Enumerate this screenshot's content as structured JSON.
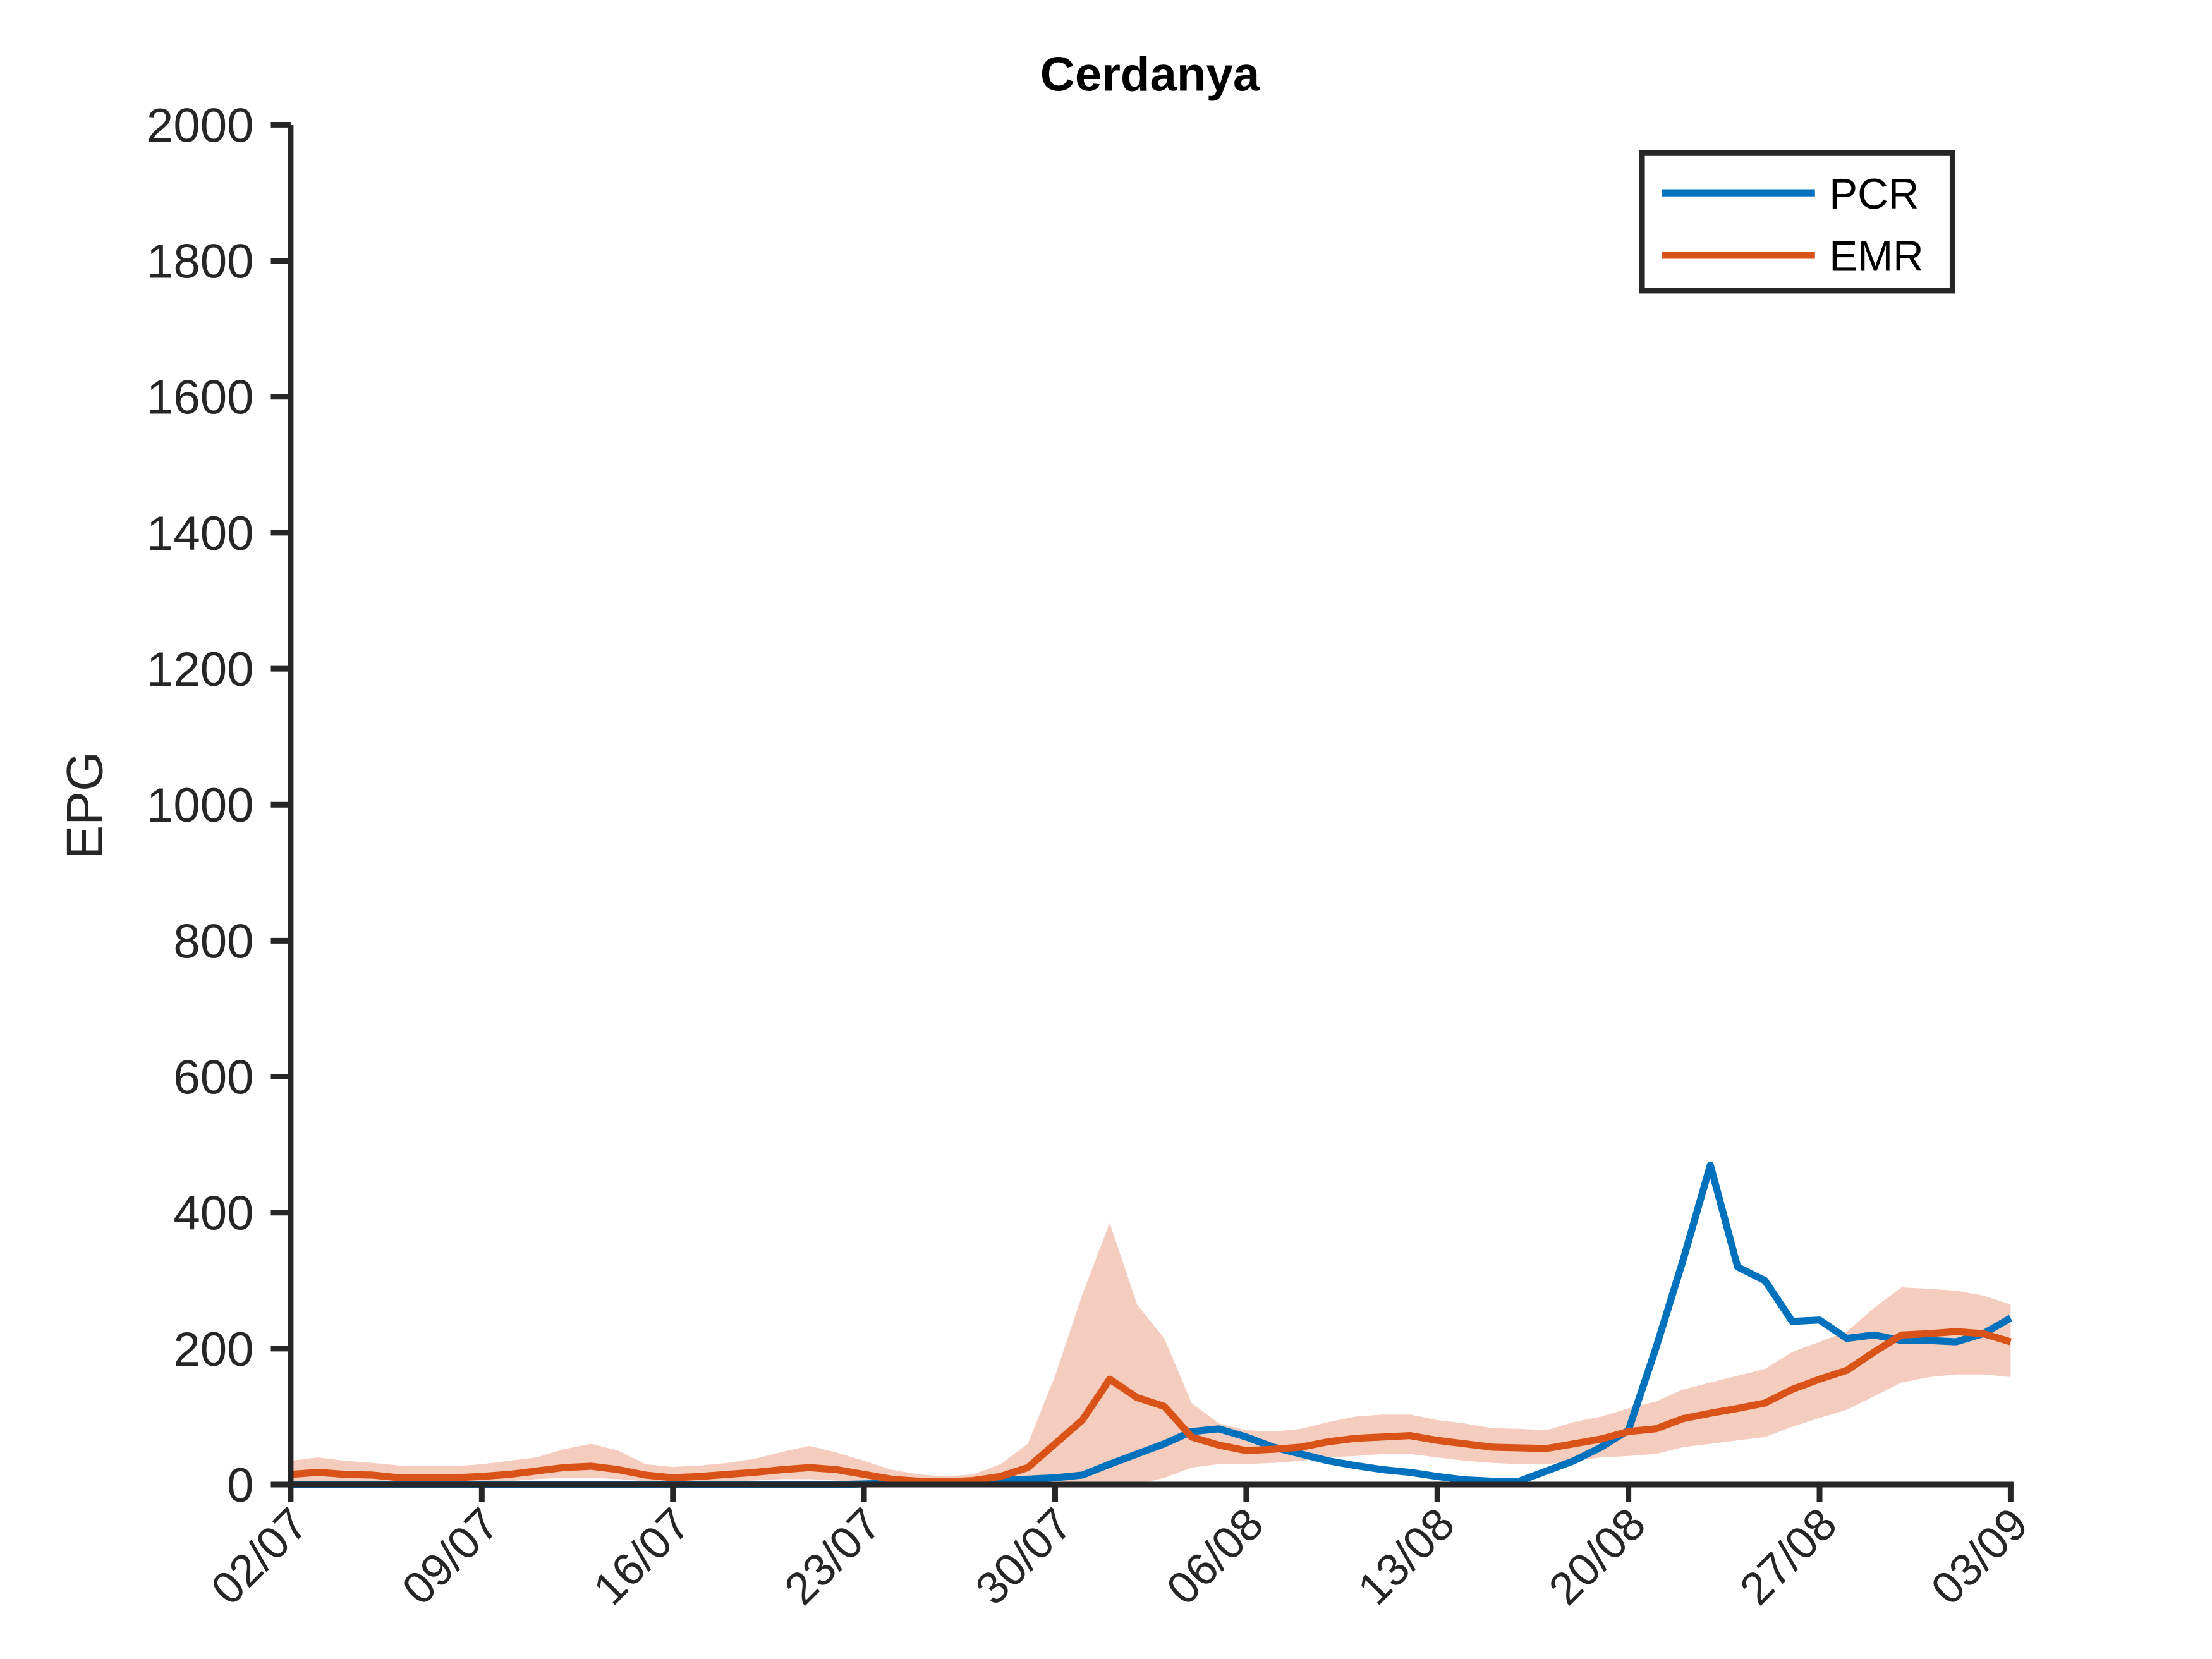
{
  "chart_data": {
    "type": "line",
    "title": "Cerdanya",
    "ylabel": "EPG",
    "x": [
      "02/07",
      "03/07",
      "04/07",
      "05/07",
      "06/07",
      "07/07",
      "08/07",
      "09/07",
      "10/07",
      "11/07",
      "12/07",
      "13/07",
      "14/07",
      "15/07",
      "16/07",
      "17/07",
      "18/07",
      "19/07",
      "20/07",
      "21/07",
      "22/07",
      "23/07",
      "24/07",
      "25/07",
      "26/07",
      "27/07",
      "28/07",
      "29/07",
      "30/07",
      "31/07",
      "01/08",
      "02/08",
      "03/08",
      "04/08",
      "05/08",
      "06/08",
      "07/08",
      "08/08",
      "09/08",
      "10/08",
      "11/08",
      "12/08",
      "13/08",
      "14/08",
      "15/08",
      "16/08",
      "17/08",
      "18/08",
      "19/08",
      "20/08",
      "21/08",
      "22/08",
      "23/08",
      "24/08",
      "25/08",
      "26/08",
      "27/08",
      "28/08",
      "29/08",
      "30/08",
      "31/08",
      "01/09",
      "02/09",
      "03/09"
    ],
    "series": [
      {
        "name": "PCR",
        "color": "#0072BD",
        "values": [
          0,
          0,
          0,
          0,
          0,
          0,
          0,
          0,
          0,
          0,
          0,
          0,
          0,
          0,
          0,
          0,
          0,
          0,
          0,
          0,
          0,
          1,
          2,
          3,
          4,
          5,
          6,
          8,
          10,
          14,
          30,
          45,
          60,
          78,
          82,
          70,
          55,
          45,
          35,
          28,
          22,
          18,
          12,
          7,
          5,
          5,
          20,
          35,
          55,
          80,
          200,
          330,
          470,
          320,
          300,
          240,
          242,
          215,
          220,
          212,
          212,
          210,
          222,
          245
        ]
      },
      {
        "name": "EMR",
        "color": "#D95319",
        "band_color": "#F5CDBE",
        "values": [
          15,
          18,
          15,
          14,
          10,
          10,
          10,
          12,
          15,
          20,
          25,
          27,
          22,
          14,
          10,
          12,
          15,
          18,
          22,
          25,
          22,
          15,
          8,
          5,
          4,
          6,
          12,
          25,
          60,
          95,
          155,
          128,
          115,
          70,
          58,
          50,
          52,
          55,
          63,
          68,
          70,
          72,
          65,
          60,
          55,
          54,
          53,
          60,
          67,
          78,
          82,
          97,
          105,
          112,
          120,
          140,
          155,
          168,
          195,
          220,
          222,
          225,
          222,
          210
        ],
        "upper": [
          35,
          40,
          35,
          32,
          28,
          27,
          27,
          30,
          35,
          40,
          52,
          60,
          50,
          30,
          26,
          28,
          32,
          38,
          48,
          57,
          47,
          35,
          22,
          15,
          12,
          15,
          30,
          60,
          160,
          280,
          385,
          265,
          215,
          120,
          90,
          80,
          78,
          82,
          92,
          100,
          103,
          103,
          95,
          90,
          83,
          82,
          80,
          92,
          100,
          112,
          122,
          140,
          150,
          160,
          170,
          195,
          210,
          225,
          260,
          290,
          288,
          285,
          278,
          265
        ],
        "lower": [
          3,
          5,
          5,
          4,
          2,
          2,
          2,
          3,
          5,
          8,
          10,
          10,
          8,
          5,
          3,
          3,
          5,
          6,
          8,
          8,
          6,
          4,
          2,
          1,
          1,
          1,
          2,
          4,
          5,
          3,
          0,
          0,
          10,
          25,
          30,
          30,
          32,
          35,
          40,
          42,
          45,
          45,
          40,
          35,
          32,
          30,
          30,
          35,
          40,
          42,
          45,
          55,
          60,
          65,
          70,
          85,
          98,
          110,
          130,
          150,
          158,
          162,
          162,
          158
        ]
      }
    ],
    "ylim": [
      0,
      2000
    ],
    "yticks": [
      0,
      200,
      400,
      600,
      800,
      1000,
      1200,
      1400,
      1600,
      1800,
      2000
    ],
    "legend": "upper right"
  }
}
